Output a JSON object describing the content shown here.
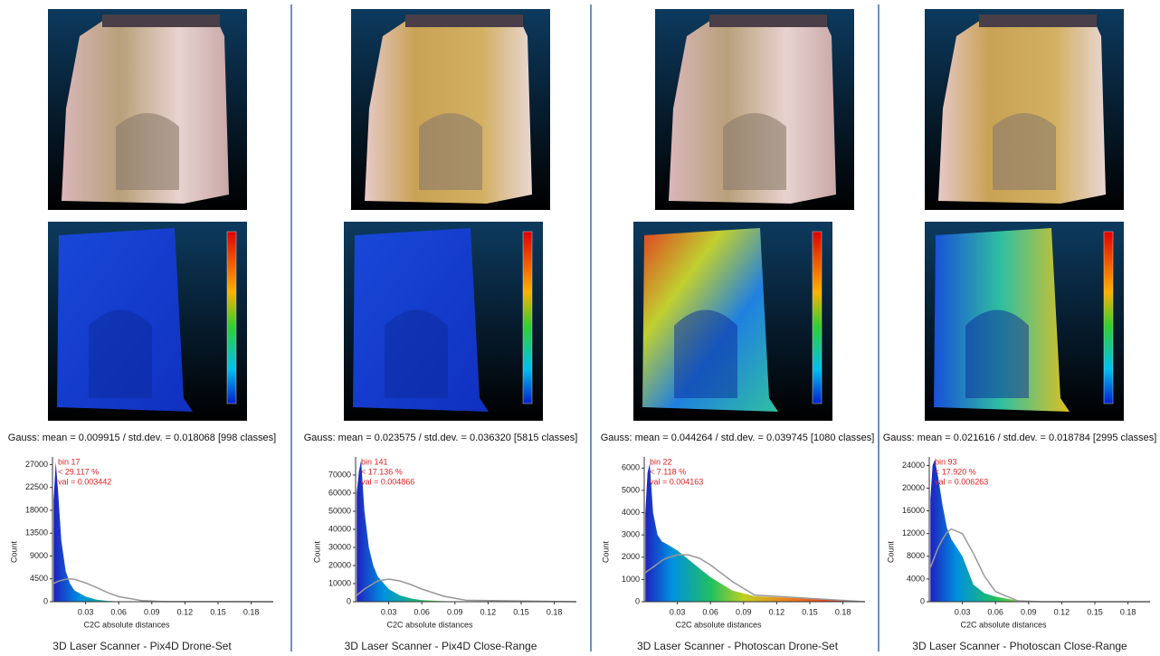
{
  "panels": [
    {
      "gauss": "Gauss: mean = 0.009915 / std.dev. = 0.018068 [998 classes]",
      "caption": "3D Laser Scanner - Pix4D Drone-Set",
      "histogram": {
        "type": "area",
        "annotation": [
          "bin 17",
          "< 29.117 %",
          "val = 0.003442"
        ],
        "x_label": "C2C absolute distances",
        "y_label": "Count",
        "xlim": [
          0,
          0.2
        ],
        "ylim": [
          0,
          28500
        ],
        "xticks": [
          0.03,
          0.06,
          0.09,
          0.12,
          0.15,
          0.18
        ],
        "yticks": [
          0,
          4500,
          9000,
          13500,
          18000,
          22500,
          27000
        ],
        "x": [
          0.001,
          0.003,
          0.005,
          0.008,
          0.012,
          0.016,
          0.02,
          0.03,
          0.04,
          0.05,
          0.06,
          0.08,
          0.1,
          0.2
        ],
        "values": [
          20000,
          27500,
          22000,
          12000,
          6000,
          3500,
          2200,
          1000,
          400,
          150,
          60,
          20,
          5,
          0
        ],
        "fit": [
          3600,
          3800,
          4000,
          4200,
          4400,
          4500,
          4400,
          3700,
          2800,
          1800,
          1000,
          250,
          30,
          0
        ]
      }
    },
    {
      "gauss": "Gauss: mean = 0.023575 / std.dev. = 0.036320 [5815 classes]",
      "caption": "3D Laser Scanner - Pix4D Close-Range",
      "histogram": {
        "type": "area",
        "annotation": [
          "bin 141",
          "< 17.136 %",
          "val = 0.004866"
        ],
        "x_label": "C2C absolute distances",
        "y_label": "Count",
        "xlim": [
          0,
          0.2
        ],
        "ylim": [
          0,
          80000
        ],
        "xticks": [
          0.03,
          0.06,
          0.09,
          0.12,
          0.15,
          0.18
        ],
        "yticks": [
          0,
          10000,
          20000,
          30000,
          40000,
          50000,
          60000,
          70000
        ],
        "x": [
          0.001,
          0.003,
          0.005,
          0.008,
          0.012,
          0.016,
          0.02,
          0.03,
          0.04,
          0.05,
          0.06,
          0.08,
          0.1,
          0.2
        ],
        "values": [
          60000,
          72000,
          78000,
          50000,
          30000,
          20000,
          14000,
          7000,
          3500,
          1800,
          900,
          300,
          100,
          0
        ],
        "fit": [
          3500,
          4500,
          5500,
          7000,
          8500,
          10000,
          11500,
          12500,
          11500,
          9500,
          7000,
          3000,
          800,
          0
        ]
      }
    },
    {
      "gauss": "Gauss: mean = 0.044264 / std.dev. = 0.039745 [1080 classes]",
      "caption": "3D Laser Scanner - Photoscan Drone-Set",
      "histogram": {
        "type": "area",
        "annotation": [
          "bin 22",
          "< 7.118 %",
          "val = 0.004163"
        ],
        "x_label": "C2C absolute distances",
        "y_label": "Count",
        "xlim": [
          0,
          0.2
        ],
        "ylim": [
          0,
          6500
        ],
        "xticks": [
          0.03,
          0.06,
          0.09,
          0.12,
          0.15,
          0.18
        ],
        "yticks": [
          0,
          1000,
          2000,
          3000,
          4000,
          5000,
          6000
        ],
        "x": [
          0.001,
          0.003,
          0.005,
          0.008,
          0.012,
          0.016,
          0.02,
          0.03,
          0.04,
          0.05,
          0.06,
          0.08,
          0.1,
          0.2
        ],
        "values": [
          4000,
          5800,
          6200,
          4000,
          3000,
          2700,
          2600,
          2300,
          1900,
          1500,
          1100,
          500,
          250,
          0
        ],
        "fit": [
          1300,
          1380,
          1450,
          1550,
          1700,
          1850,
          1950,
          2100,
          2100,
          1950,
          1650,
          900,
          300,
          0
        ]
      }
    },
    {
      "gauss": "Gauss: mean = 0.021616 / std.dev. = 0.018784 [2995 classes]",
      "caption": "3D Laser Scanner - Photoscan Close-Range",
      "histogram": {
        "type": "area",
        "annotation": [
          "bin 93",
          "< 17.920 %",
          "val = 0.006263"
        ],
        "x_label": "C2C absolute distances",
        "y_label": "Count",
        "xlim": [
          0,
          0.2
        ],
        "ylim": [
          0,
          25500
        ],
        "xticks": [
          0.03,
          0.06,
          0.09,
          0.12,
          0.15,
          0.18
        ],
        "yticks": [
          0,
          4000,
          8000,
          12000,
          16000,
          20000,
          24000
        ],
        "x": [
          0.001,
          0.003,
          0.005,
          0.008,
          0.012,
          0.016,
          0.02,
          0.03,
          0.04,
          0.05,
          0.06,
          0.08,
          0.1,
          0.2
        ],
        "values": [
          18000,
          24000,
          25000,
          22000,
          17000,
          13000,
          11000,
          8000,
          3000,
          1500,
          900,
          200,
          50,
          0
        ],
        "fit": [
          6000,
          7000,
          8000,
          9500,
          11000,
          12200,
          12800,
          12000,
          8500,
          4500,
          1800,
          150,
          0,
          0
        ]
      }
    }
  ]
}
